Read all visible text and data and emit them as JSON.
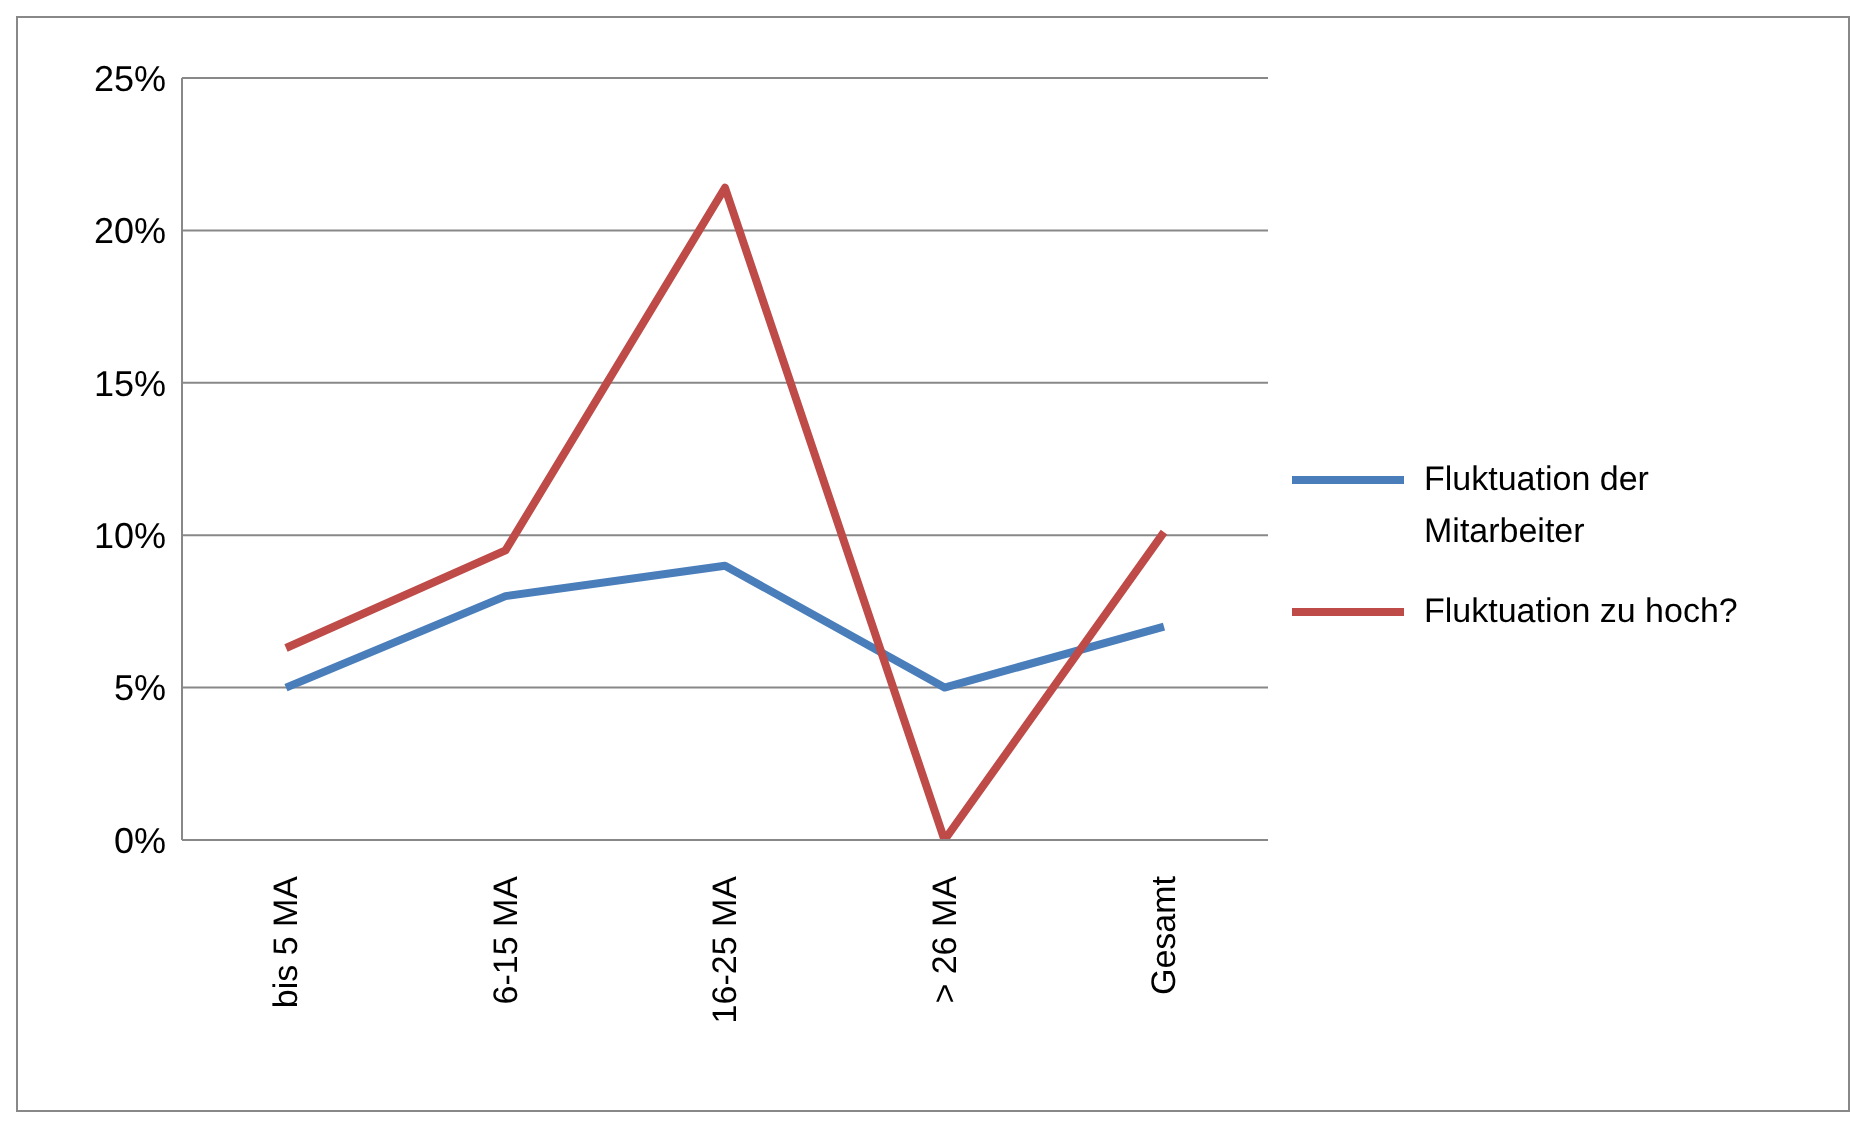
{
  "chart_data": {
    "type": "line",
    "categories": [
      "bis 5 MA",
      "6-15 MA",
      "16-25 MA",
      "> 26 MA",
      "Gesamt"
    ],
    "series": [
      {
        "name": "Fluktuation der Mitarbeiter",
        "color": "#4a7ebb",
        "values": [
          5,
          8,
          9,
          5,
          7
        ]
      },
      {
        "name": "Fluktuation zu hoch?",
        "color": "#be4b48",
        "values": [
          6.3,
          9.5,
          21.4,
          0,
          10.1
        ]
      }
    ],
    "ylim": [
      0,
      25
    ],
    "yticks": [
      {
        "value": 0,
        "label": "0%"
      },
      {
        "value": 5,
        "label": "5%"
      },
      {
        "value": 10,
        "label": "10%"
      },
      {
        "value": 15,
        "label": "15%"
      },
      {
        "value": 20,
        "label": "20%"
      },
      {
        "value": 25,
        "label": "25%"
      }
    ],
    "grid": "y",
    "legend": "right",
    "marker": "none",
    "line_style": "solid"
  }
}
